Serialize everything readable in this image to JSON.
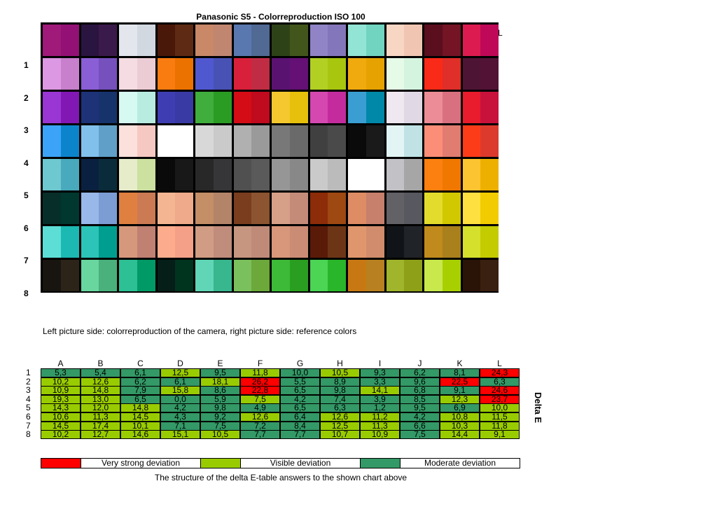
{
  "title": "Panasonic S5 - Colorreproduction ISO 100",
  "stray_label": "L",
  "caption": "Left picture side: colorreproduction of the camera, right picture side: reference colors",
  "footnote": "The structure of the delta E-table answers to the shown chart above",
  "delta_label": "Delta E",
  "legend": [
    {
      "label": "Very strong deviation",
      "color": "#ff0000"
    },
    {
      "label": "Visible deviation",
      "color": "#99cc00"
    },
    {
      "label": "Moderate deviation",
      "color": "#339966"
    }
  ],
  "chart_data": [
    {
      "type": "table",
      "description_source": "color-checker-chart",
      "row_labels": [
        "1",
        "2",
        "3",
        "4",
        "5",
        "6",
        "7",
        "8"
      ],
      "patches": [
        [
          [
            "#a01a7a",
            "#931074"
          ],
          [
            "#2a1440",
            "#3a1a4a"
          ],
          [
            "#e4e6ee",
            "#d2d8e0"
          ],
          [
            "#4a1808",
            "#5e2a14"
          ],
          [
            "#c98868",
            "#c08670"
          ],
          [
            "#5a78b0",
            "#506a94"
          ],
          [
            "#2e4218",
            "#42561c"
          ],
          [
            "#9084c6",
            "#8476ba"
          ],
          [
            "#92e4d4",
            "#70d4c0"
          ],
          [
            "#f8d6c4",
            "#f0c6b2"
          ],
          [
            "#5a0e1e",
            "#741424"
          ],
          [
            "#dc1c50",
            "#c00858"
          ]
        ],
        [
          [
            "#dc98e2",
            "#c880cc"
          ],
          [
            "#8a5ed4",
            "#7650bc"
          ],
          [
            "#f4dce2",
            "#ecccd4"
          ],
          [
            "#f87c10",
            "#ec7200"
          ],
          [
            "#5058d0",
            "#4852b4"
          ],
          [
            "#d8203a",
            "#c02c44"
          ],
          [
            "#5a1270",
            "#641074"
          ],
          [
            "#b2d024",
            "#a8c60e"
          ],
          [
            "#f0aa0e",
            "#e6a200"
          ],
          [
            "#e6fae8",
            "#d4f4e0"
          ],
          [
            "#fa2a18",
            "#e02e28"
          ],
          [
            "#4e1434",
            "#521236"
          ]
        ],
        [
          [
            "#9a36d4",
            "#8218b4"
          ],
          [
            "#1e3278",
            "#16336c"
          ],
          [
            "#d6faf2",
            "#b8ece0"
          ],
          [
            "#3e3eb2",
            "#3a3aa4"
          ],
          [
            "#3fae3c",
            "#2a9c24"
          ],
          [
            "#d40c16",
            "#c00a1e"
          ],
          [
            "#f4c82e",
            "#e6c00a"
          ],
          [
            "#d448b0",
            "#c42c9e"
          ],
          [
            "#3a9ed2",
            "#0088a8"
          ],
          [
            "#f0e8f0",
            "#e0d8e4"
          ],
          [
            "#ec8c96",
            "#d87080"
          ],
          [
            "#e81c2c",
            "#c8123c"
          ]
        ],
        [
          [
            "#3ca4f8",
            "#0c84cc"
          ],
          [
            "#82c0ec",
            "#60a0c8"
          ],
          [
            "#fce0dc",
            "#f6c8c2"
          ],
          [
            "#ffffff",
            "#ffffff"
          ],
          [
            "#d8d8d8",
            "#cacaca"
          ],
          [
            "#b0b0b0",
            "#9a9a9a"
          ],
          [
            "#787878",
            "#6a6a6a"
          ],
          [
            "#404040",
            "#4a4a4a"
          ],
          [
            "#0a0a0a",
            "#1a1a1a"
          ],
          [
            "#e2f4f4",
            "#c0e2e4"
          ],
          [
            "#fc8e78",
            "#e07c70"
          ],
          [
            "#fc3c18",
            "#dc3a2c"
          ]
        ],
        [
          [
            "#6ec8d0",
            "#48aabc"
          ],
          [
            "#0a2040",
            "#0a2c3a"
          ],
          [
            "#e6ecca",
            "#cce0a0"
          ],
          [
            "#0a0a0a",
            "#181818"
          ],
          [
            "#282828",
            "#363638"
          ],
          [
            "#505050",
            "#5a5a5a"
          ],
          [
            "#969696",
            "#888888"
          ],
          [
            "#cacaca",
            "#bbbbbb"
          ],
          [
            "#ffffff",
            "#ffffff"
          ],
          [
            "#c2c2c6",
            "#a6a6a6"
          ],
          [
            "#fc8010",
            "#f07800"
          ],
          [
            "#fcc430",
            "#eeb000"
          ]
        ],
        [
          [
            "#082e2a",
            "#003830"
          ],
          [
            "#98b8ea",
            "#7c9cd4"
          ],
          [
            "#e08040",
            "#cc7a54"
          ],
          [
            "#f4b692",
            "#eeaa8a"
          ],
          [
            "#c48e66",
            "#b48468"
          ],
          [
            "#7a3e1e",
            "#8c5430"
          ],
          [
            "#d6a088",
            "#c48c78"
          ],
          [
            "#8c2c08",
            "#9e4812"
          ],
          [
            "#de8c64",
            "#c6806c"
          ],
          [
            "#626266",
            "#585860"
          ],
          [
            "#e4dc2c",
            "#d2c800"
          ],
          [
            "#fee040",
            "#f2cc00"
          ]
        ],
        [
          [
            "#5cded6",
            "#1cb8b2"
          ],
          [
            "#2cc4b8",
            "#009e90"
          ],
          [
            "#d6987c",
            "#c08072"
          ],
          [
            "#fcac8c",
            "#f4a088"
          ],
          [
            "#d09c84",
            "#c08c7c"
          ],
          [
            "#c69680",
            "#c08a78"
          ],
          [
            "#d8967a",
            "#ca8c74"
          ],
          [
            "#5a1a08",
            "#6c3616"
          ],
          [
            "#e0966c",
            "#d08c6c"
          ],
          [
            "#101418",
            "#202428"
          ],
          [
            "#c08a1c",
            "#a8801c"
          ],
          [
            "#d4e02c",
            "#c4cc00"
          ]
        ],
        [
          [
            "#181410",
            "#2c2418"
          ],
          [
            "#68d69e",
            "#4ab07c"
          ],
          [
            "#2cc094",
            "#009a66"
          ],
          [
            "#061e18",
            "#00341e"
          ],
          [
            "#60d6b6",
            "#38b68e"
          ],
          [
            "#7ac05c",
            "#6ca83a"
          ],
          [
            "#3cba38",
            "#2a9e20"
          ],
          [
            "#4cd454",
            "#2ab62a"
          ],
          [
            "#c87812",
            "#b88020"
          ],
          [
            "#a0b42c",
            "#8ea018"
          ],
          [
            "#c8e84c",
            "#a8d000"
          ],
          [
            "#2a1408",
            "#3a2010"
          ]
        ]
      ]
    },
    {
      "type": "table",
      "title": "Delta E",
      "columns": [
        "A",
        "B",
        "C",
        "D",
        "E",
        "F",
        "G",
        "H",
        "I",
        "J",
        "K",
        "L"
      ],
      "rows": [
        "1",
        "2",
        "3",
        "4",
        "5",
        "6",
        "7",
        "8"
      ],
      "values": [
        [
          "5,3",
          "5,4",
          "6,1",
          "12,5",
          "9,5",
          "11,8",
          "10,0",
          "10,5",
          "9,3",
          "6,2",
          "8,1",
          "24,3"
        ],
        [
          "10,2",
          "12,6",
          "6,2",
          "6,1",
          "18,1",
          "26,2",
          "5,5",
          "8,9",
          "3,3",
          "9,6",
          "22,5",
          "6,3"
        ],
        [
          "10,9",
          "14,8",
          "7,9",
          "15,8",
          "8,6",
          "22,8",
          "6,5",
          "9,8",
          "14,1",
          "6,8",
          "9,1",
          "24,6"
        ],
        [
          "19,3",
          "13,0",
          "6,5",
          "0,0",
          "5,9",
          "7,5",
          "4,2",
          "7,4",
          "3,9",
          "8,5",
          "12,3",
          "23,7"
        ],
        [
          "14,3",
          "12,0",
          "14,8",
          "4,2",
          "9,8",
          "4,9",
          "6,5",
          "6,3",
          "1,2",
          "9,5",
          "6,9",
          "10,0"
        ],
        [
          "10,6",
          "11,3",
          "14,5",
          "4,3",
          "9,2",
          "12,6",
          "6,4",
          "12,6",
          "11,2",
          "4,2",
          "10,8",
          "11,5"
        ],
        [
          "14,5",
          "17,4",
          "10,1",
          "7,1",
          "7,5",
          "7,2",
          "8,4",
          "12,5",
          "11,3",
          "6,6",
          "10,3",
          "11,8"
        ],
        [
          "10,2",
          "12,7",
          "14,6",
          "15,1",
          "10,5",
          "7,7",
          "7,7",
          "10,7",
          "10,9",
          "7,5",
          "14,4",
          "9,1"
        ]
      ],
      "categories": [
        [
          "m",
          "m",
          "m",
          "v",
          "m",
          "v",
          "m",
          "v",
          "m",
          "m",
          "m",
          "s"
        ],
        [
          "v",
          "v",
          "m",
          "m",
          "v",
          "s",
          "m",
          "m",
          "m",
          "m",
          "s",
          "m"
        ],
        [
          "v",
          "v",
          "m",
          "v",
          "m",
          "s",
          "m",
          "m",
          "v",
          "m",
          "m",
          "s"
        ],
        [
          "v",
          "v",
          "m",
          "m",
          "m",
          "v",
          "m",
          "m",
          "m",
          "m",
          "v",
          "s"
        ],
        [
          "v",
          "v",
          "v",
          "m",
          "m",
          "m",
          "m",
          "m",
          "m",
          "m",
          "m",
          "v"
        ],
        [
          "v",
          "v",
          "v",
          "m",
          "m",
          "v",
          "m",
          "v",
          "v",
          "m",
          "v",
          "v"
        ],
        [
          "v",
          "v",
          "v",
          "m",
          "m",
          "m",
          "m",
          "v",
          "v",
          "m",
          "v",
          "v"
        ],
        [
          "v",
          "v",
          "v",
          "v",
          "v",
          "m",
          "m",
          "v",
          "v",
          "m",
          "v",
          "v"
        ]
      ],
      "category_colors": {
        "s": "#ff0000",
        "v": "#99cc00",
        "m": "#339966"
      }
    }
  ]
}
